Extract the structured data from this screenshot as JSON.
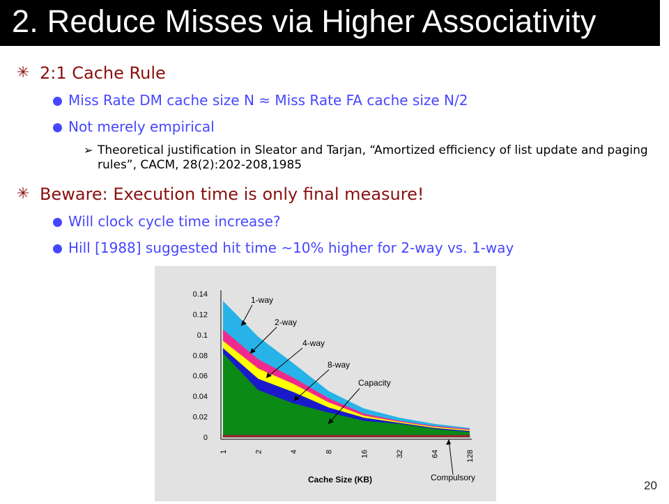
{
  "title": "2. Reduce Misses via Higher Associativity",
  "bullets": {
    "rule": "2:1 Cache Rule",
    "rule_sub1": "Miss Rate DM cache size N ≈ Miss Rate FA cache size N/2",
    "rule_sub2": "Not merely empirical",
    "rule_sub3": "Theoretical justification in Sleator and Tarjan, “Amortized efficiency of list update and paging rules”, CACM, 28(2):202-208,1985",
    "beware": "Beware: Execution time is only final measure!",
    "beware_sub1": "Will clock cycle time increase?",
    "beware_sub2": "Hill [1988] suggested hit time ~10% higher for 2-way vs. 1-way"
  },
  "slide_number": "20",
  "colors": {
    "heading": "#8a0f0f",
    "subheading": "#4646ff",
    "one_way": "#27b3e8",
    "two_way": "#ef2a8c",
    "four_way": "#ffff00",
    "eight_way": "#1a1acc",
    "capacity": "#0b8a16",
    "compulsory": "#b22222"
  },
  "chart_data": {
    "type": "area",
    "xlabel": "Cache Size (KB)",
    "ylabel": "",
    "categories": [
      "1",
      "2",
      "4",
      "8",
      "16",
      "32",
      "64",
      "128"
    ],
    "ylim": [
      0,
      0.14
    ],
    "yticks": [
      "0",
      "0.02",
      "0.04",
      "0.06",
      "0.08",
      "0.1",
      "0.12",
      "0.14"
    ],
    "series": [
      {
        "name": "1-way",
        "values": [
          0.133,
          0.098,
          0.072,
          0.045,
          0.028,
          0.019,
          0.013,
          0.009
        ]
      },
      {
        "name": "2-way",
        "values": [
          0.105,
          0.076,
          0.058,
          0.038,
          0.023,
          0.016,
          0.011,
          0.008
        ]
      },
      {
        "name": "4-way",
        "values": [
          0.094,
          0.067,
          0.052,
          0.034,
          0.021,
          0.015,
          0.01,
          0.007
        ]
      },
      {
        "name": "8-way",
        "values": [
          0.087,
          0.057,
          0.044,
          0.029,
          0.019,
          0.014,
          0.009,
          0.006
        ]
      },
      {
        "name": "Capacity",
        "values": [
          0.082,
          0.046,
          0.033,
          0.024,
          0.016,
          0.013,
          0.008,
          0.005
        ]
      },
      {
        "name": "Compulsory",
        "values": [
          0.002,
          0.002,
          0.002,
          0.002,
          0.002,
          0.002,
          0.002,
          0.002
        ]
      }
    ],
    "grid": false,
    "legend": "callout labels inside plot"
  }
}
